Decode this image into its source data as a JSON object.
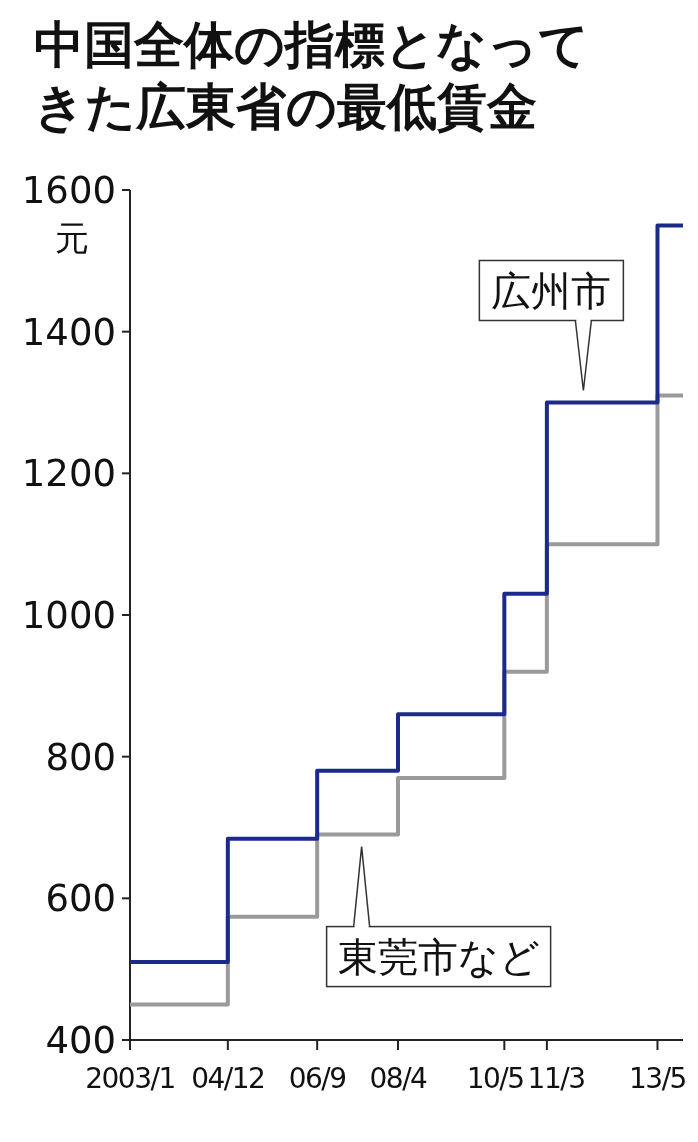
{
  "chart_data": {
    "type": "step",
    "title": "中国全体の指標となってきた広東省の最低賃金",
    "ylabel": "元",
    "xlim": [
      "2003-01",
      "2013-11"
    ],
    "xticks": [
      {
        "value": "2003-01",
        "label": "2003/1"
      },
      {
        "value": "2004-12",
        "label": "04/12"
      },
      {
        "value": "2006-09",
        "label": "06/9"
      },
      {
        "value": "2008-04",
        "label": "08/4"
      },
      {
        "value": "2010-05",
        "label": "10/5"
      },
      {
        "value": "2011-03",
        "label": "11/3"
      },
      {
        "value": "2013-05",
        "label": "13/5"
      }
    ],
    "ylim": [
      400,
      1600
    ],
    "yticks": [
      400,
      600,
      800,
      1000,
      1200,
      1400,
      1600
    ],
    "x": [
      "2003-01",
      "2004-12",
      "2006-09",
      "2008-04",
      "2010-05",
      "2011-03",
      "2013-05",
      "2013-11"
    ],
    "series": [
      {
        "name": "広州市",
        "color": "#1c2a8c",
        "values": [
          510,
          684,
          780,
          860,
          1030,
          1300,
          1550,
          1550
        ]
      },
      {
        "name": "東莞市など",
        "color": "#9a9a9a",
        "values": [
          450,
          574,
          690,
          770,
          920,
          1100,
          1310,
          1310
        ]
      }
    ]
  }
}
